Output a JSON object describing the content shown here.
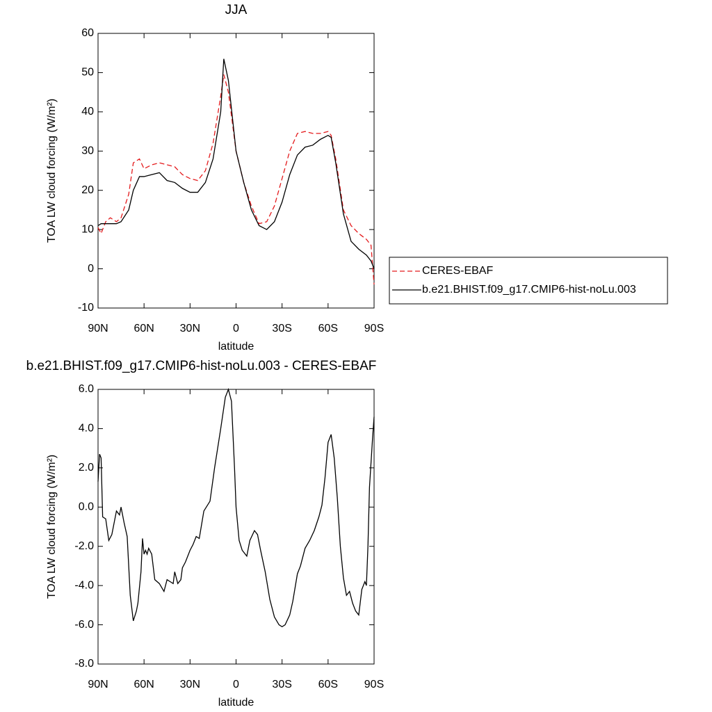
{
  "chart_data": [
    {
      "type": "line",
      "title": "JJA",
      "xlabel": "latitude",
      "ylabel": "TOA LW cloud forcing (W/m²)",
      "x": [
        90,
        88,
        85,
        82,
        78,
        75,
        70,
        67,
        63,
        60,
        55,
        50,
        45,
        40,
        35,
        30,
        25,
        20,
        15,
        10,
        8,
        5,
        0,
        -5,
        -10,
        -15,
        -20,
        -25,
        -30,
        -35,
        -40,
        -45,
        -50,
        -55,
        -60,
        -62,
        -65,
        -70,
        -75,
        -80,
        -85,
        -88,
        -90
      ],
      "xlim": [
        90,
        -90
      ],
      "xticks": [
        {
          "value": 90,
          "label": "90N"
        },
        {
          "value": 60,
          "label": "60N"
        },
        {
          "value": 30,
          "label": "30N"
        },
        0,
        {
          "value": -30,
          "label": "30S"
        },
        {
          "value": -60,
          "label": "60S"
        },
        {
          "value": -90,
          "label": "90S"
        }
      ],
      "ylim": [
        -10,
        60
      ],
      "yticks": [
        -10,
        0,
        10,
        20,
        30,
        40,
        50,
        60
      ],
      "legend": "outside-right",
      "series": [
        {
          "name": "CERES-EBAF",
          "color": "#e41a1c",
          "style": "dashed",
          "values": [
            10.5,
            9,
            12,
            13,
            12,
            13,
            19,
            27,
            28,
            25.5,
            26.5,
            27,
            26.5,
            26,
            24,
            23,
            22.5,
            25,
            32,
            44,
            49.5,
            45,
            30,
            22,
            16,
            11.5,
            12,
            16,
            23,
            30,
            34.5,
            35,
            34.5,
            34.5,
            35,
            34,
            28,
            15,
            11,
            9,
            7.5,
            6,
            -4
          ]
        },
        {
          "name": "b.e21.BHIST.f09_g17.CMIP6-hist-noLu.003",
          "color": "#000000",
          "style": "solid",
          "values": [
            11,
            11.5,
            11.5,
            11.5,
            11.5,
            12,
            15,
            20,
            23.5,
            23.5,
            24,
            24.5,
            22.5,
            22,
            20.5,
            19.5,
            19.5,
            22,
            28,
            40,
            53.5,
            48,
            30,
            22,
            15,
            11,
            10,
            12,
            17,
            24,
            29,
            31,
            31.5,
            33,
            34,
            33.5,
            27,
            14,
            7,
            5,
            3.5,
            2,
            0
          ]
        }
      ]
    },
    {
      "type": "line",
      "title": "b.e21.BHIST.f09_g17.CMIP6-hist-noLu.003 - CERES-EBAF",
      "xlabel": "latitude",
      "ylabel": "TOA LW cloud forcing (W/m²)",
      "x": [
        90,
        89,
        88,
        87,
        85,
        83,
        81,
        78,
        76,
        75,
        73,
        71,
        69,
        67,
        65,
        64,
        62,
        61,
        60,
        59,
        58,
        57,
        55,
        53,
        50,
        47,
        45,
        43,
        41,
        40,
        38,
        36,
        35,
        33,
        30,
        28,
        26,
        24,
        21,
        17,
        14,
        10,
        7,
        5,
        3,
        1,
        0,
        -2,
        -4,
        -7,
        -9,
        -12,
        -14,
        -16,
        -19,
        -22,
        -25,
        -28,
        -30,
        -32,
        -35,
        -37,
        -40,
        -42,
        -45,
        -48,
        -51,
        -54,
        -56,
        -58,
        -60,
        -62,
        -64,
        -66,
        -68,
        -70,
        -72,
        -74,
        -76,
        -78,
        -80,
        -82,
        -84,
        -85,
        -86,
        -87,
        -89,
        -90
      ],
      "xlim": [
        90,
        -90
      ],
      "xticks": [
        {
          "value": 90,
          "label": "90N"
        },
        {
          "value": 60,
          "label": "60N"
        },
        {
          "value": 30,
          "label": "30N"
        },
        0,
        {
          "value": -30,
          "label": "30S"
        },
        {
          "value": -60,
          "label": "60S"
        },
        {
          "value": -90,
          "label": "90S"
        }
      ],
      "ylim": [
        -8,
        6
      ],
      "yticks": [
        {
          "value": -8,
          "label": "-8.0"
        },
        {
          "value": -6,
          "label": "-6.0"
        },
        {
          "value": -4,
          "label": "-4.0"
        },
        {
          "value": -2,
          "label": "-2.0"
        },
        {
          "value": 0,
          "label": "0.0"
        },
        {
          "value": 2,
          "label": "2.0"
        },
        {
          "value": 4,
          "label": "4.0"
        },
        {
          "value": 6,
          "label": "6.0"
        }
      ],
      "color": "#000000",
      "values": [
        1.3,
        2.7,
        2.5,
        -0.5,
        -0.6,
        -1.7,
        -1.4,
        -0.2,
        -0.4,
        0,
        -0.8,
        -1.5,
        -4.5,
        -5.8,
        -5.3,
        -4.9,
        -3.3,
        -1.6,
        -2.4,
        -2.2,
        -2.4,
        -2.1,
        -2.4,
        -3.7,
        -3.9,
        -4.3,
        -3.7,
        -3.8,
        -3.9,
        -3.3,
        -3.9,
        -3.7,
        -3.1,
        -2.8,
        -2.2,
        -1.9,
        -1.5,
        -1.6,
        -0.2,
        0.3,
        2.0,
        4.0,
        5.6,
        6.0,
        5.4,
        2.0,
        0,
        -1.7,
        -2.2,
        -2.5,
        -1.7,
        -1.2,
        -1.4,
        -2.2,
        -3.3,
        -4.7,
        -5.6,
        -6.0,
        -6.1,
        -6.0,
        -5.5,
        -4.8,
        -3.4,
        -3.0,
        -2.1,
        -1.7,
        -1.2,
        -0.5,
        0.1,
        1.5,
        3.3,
        3.7,
        2.5,
        0.5,
        -2.0,
        -3.6,
        -4.5,
        -4.3,
        -4.9,
        -5.3,
        -5.5,
        -4.2,
        -3.8,
        -4.0,
        -2.0,
        1.0,
        3.5,
        4.6
      ]
    }
  ]
}
